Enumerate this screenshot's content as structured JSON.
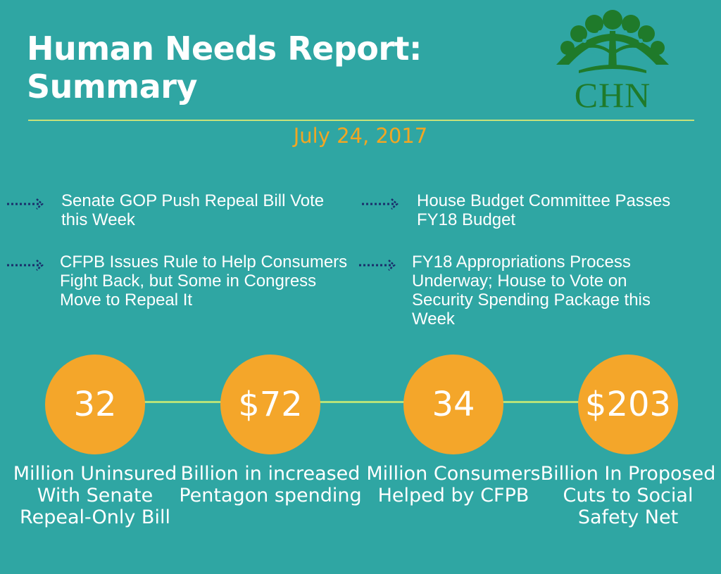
{
  "header": {
    "title_line1": "Human Needs Report:",
    "title_line2": "Summary",
    "logo_text": "CHN",
    "date": "July 24, 2017"
  },
  "headlines": [
    {
      "text": "Senate GOP Push Repeal Bill Vote this Week"
    },
    {
      "text": "House Budget Committee Passes FY18 Budget"
    },
    {
      "text": "CFPB Issues Rule to Help Consumers Fight Back, but Some in Congress Move to Repeal It"
    },
    {
      "text": "FY18 Appropriations Process Underway; House to Vote on Security Spending Package this Week"
    }
  ],
  "stats": [
    {
      "value": "32",
      "caption": "Million Uninsured With Senate Repeal-Only Bill"
    },
    {
      "value": "$72",
      "caption": "Billion in increased Pentagon spending"
    },
    {
      "value": "34",
      "caption": "Million Consumers Helped by CFPB"
    },
    {
      "value": "$203",
      "caption": "Billion In Proposed Cuts to Social Safety Net"
    }
  ],
  "colors": {
    "background": "#2fa6a3",
    "accent_orange": "#f4a62a",
    "date_orange": "#f2a623",
    "divider_green": "#c7e27a",
    "arrow_navy": "#1a2e6b",
    "logo_green": "#1f7a2a"
  },
  "icons": {
    "bullet": "dotted-arrow-icon",
    "logo": "tree-icon"
  }
}
